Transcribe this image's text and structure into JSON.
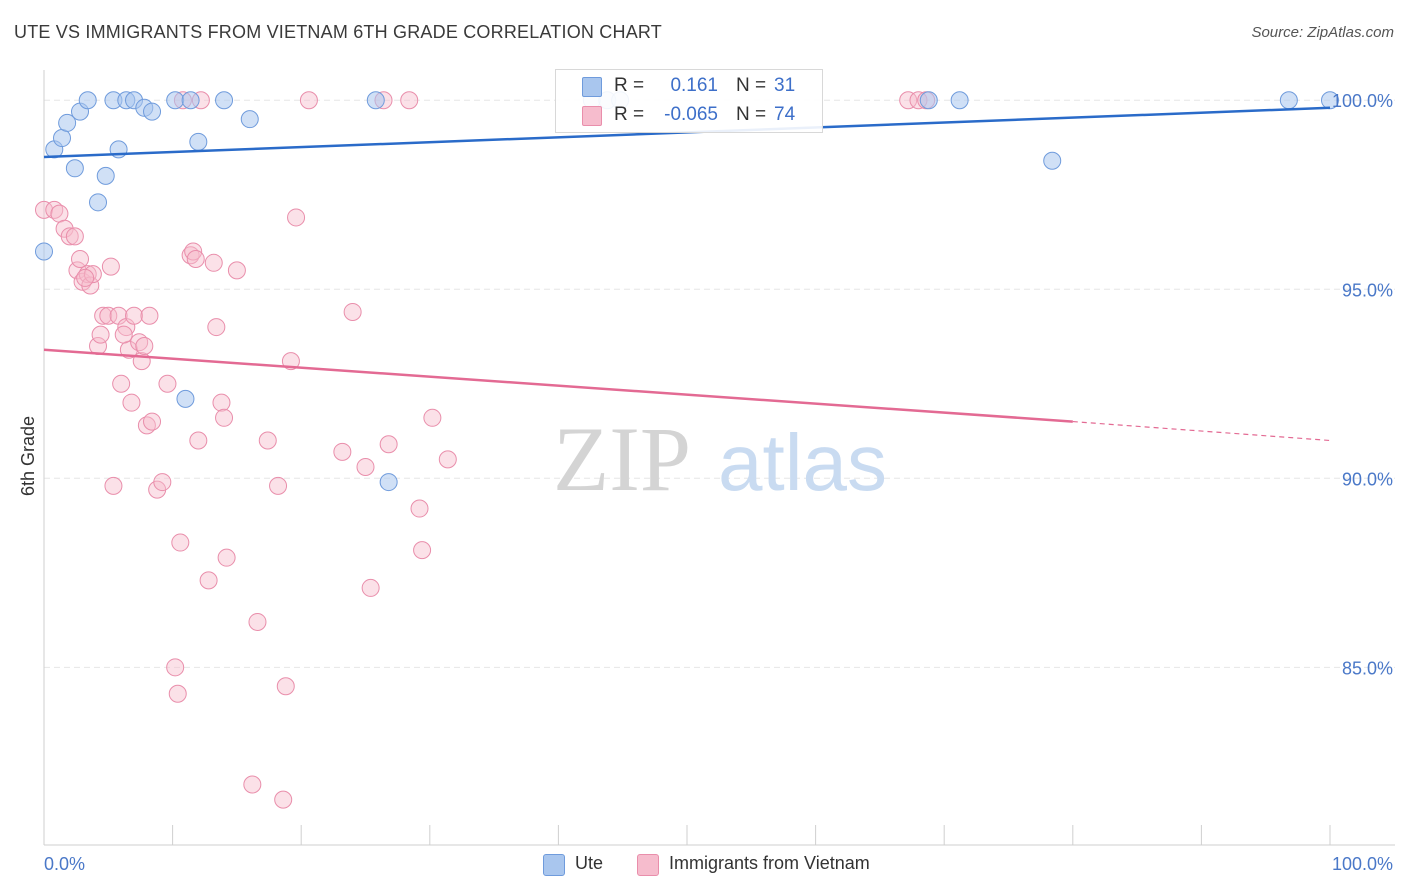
{
  "title": "UTE VS IMMIGRANTS FROM VIETNAM 6TH GRADE CORRELATION CHART",
  "source": "Source: ZipAtlas.com",
  "watermark": {
    "zip": "ZIP",
    "atlas": "atlas"
  },
  "colors": {
    "ute_fill": "#a9c6ee",
    "ute_stroke": "#6f9bdc",
    "ute_line": "#2a6bc9",
    "viet_fill": "#f6bccd",
    "viet_stroke": "#e98eab",
    "viet_line": "#e36a93",
    "tick_label": "#4a78c8",
    "grid": "#e6e6e6"
  },
  "legend": {
    "rows": [
      {
        "r_label": "R =",
        "r_value": "0.161",
        "n_label": "N =",
        "n_value": "31"
      },
      {
        "r_label": "R =",
        "r_value": "-0.065",
        "n_label": "N =",
        "n_value": "74"
      }
    ]
  },
  "bottom_legend": {
    "ute": "Ute",
    "viet": "Immigrants from Vietnam"
  },
  "chart_data": {
    "type": "scatter",
    "title": "UTE VS IMMIGRANTS FROM VIETNAM 6TH GRADE CORRELATION CHART",
    "ylabel": "6th Grade",
    "xlabel": "",
    "xlim": [
      0,
      100
    ],
    "ylim": [
      80.3,
      100.8
    ],
    "x_tick_labels": [
      {
        "value": 0,
        "label": "0.0%"
      },
      {
        "value": 100,
        "label": "100.0%"
      }
    ],
    "y_tick_labels": [
      {
        "value": 100,
        "label": "100.0%"
      },
      {
        "value": 95,
        "label": "95.0%"
      },
      {
        "value": 90,
        "label": "90.0%"
      },
      {
        "value": 85,
        "label": "85.0%"
      }
    ],
    "series": [
      {
        "name": "Ute",
        "r": 0.161,
        "n": 31,
        "trend": {
          "x0": 0,
          "y0": 98.5,
          "x1": 100,
          "y1": 99.8
        },
        "points": [
          [
            0,
            96.0
          ],
          [
            0.8,
            98.7
          ],
          [
            1.4,
            99.0
          ],
          [
            1.8,
            99.4
          ],
          [
            2.4,
            98.2
          ],
          [
            2.8,
            99.7
          ],
          [
            3.4,
            100.0
          ],
          [
            4.2,
            97.3
          ],
          [
            4.8,
            98.0
          ],
          [
            5.4,
            100.0
          ],
          [
            5.8,
            98.7
          ],
          [
            6.4,
            100.0
          ],
          [
            7.0,
            100.0
          ],
          [
            7.8,
            99.8
          ],
          [
            8.4,
            99.7
          ],
          [
            10.2,
            100.0
          ],
          [
            11.0,
            92.1
          ],
          [
            11.4,
            100.0
          ],
          [
            12.0,
            98.9
          ],
          [
            14.0,
            100.0
          ],
          [
            16.0,
            99.5
          ],
          [
            25.8,
            100.0
          ],
          [
            26.8,
            89.9
          ],
          [
            42.6,
            100.0
          ],
          [
            43.8,
            100.0
          ],
          [
            44.8,
            100.0
          ],
          [
            68.8,
            100.0
          ],
          [
            71.2,
            100.0
          ],
          [
            78.4,
            98.4
          ],
          [
            96.8,
            100.0
          ],
          [
            100.0,
            100.0
          ]
        ]
      },
      {
        "name": "Immigrants from Vietnam",
        "r": -0.065,
        "n": 74,
        "trend": {
          "x0": 0,
          "y0": 93.4,
          "x1": 80,
          "y1": 91.5,
          "dash_to_x": 100,
          "dash_to_y": 91.0
        },
        "points": [
          [
            0,
            97.1
          ],
          [
            0.8,
            97.1
          ],
          [
            1.2,
            97.0
          ],
          [
            1.6,
            96.6
          ],
          [
            2.0,
            96.4
          ],
          [
            2.4,
            96.4
          ],
          [
            2.6,
            95.5
          ],
          [
            2.8,
            95.8
          ],
          [
            3.0,
            95.2
          ],
          [
            3.4,
            95.4
          ],
          [
            3.6,
            95.1
          ],
          [
            3.8,
            95.4
          ],
          [
            4.2,
            93.5
          ],
          [
            4.4,
            93.8
          ],
          [
            4.6,
            94.3
          ],
          [
            5.0,
            94.3
          ],
          [
            5.2,
            95.6
          ],
          [
            5.4,
            89.8
          ],
          [
            5.8,
            94.3
          ],
          [
            6.0,
            92.5
          ],
          [
            6.4,
            94.0
          ],
          [
            6.6,
            93.4
          ],
          [
            6.8,
            92.0
          ],
          [
            7.0,
            94.3
          ],
          [
            7.4,
            93.6
          ],
          [
            7.6,
            93.1
          ],
          [
            7.8,
            93.5
          ],
          [
            8.0,
            91.4
          ],
          [
            8.2,
            94.3
          ],
          [
            8.4,
            91.5
          ],
          [
            8.8,
            89.7
          ],
          [
            9.2,
            89.9
          ],
          [
            9.6,
            92.5
          ],
          [
            10.2,
            85.0
          ],
          [
            10.4,
            84.3
          ],
          [
            10.6,
            88.3
          ],
          [
            10.8,
            100.0
          ],
          [
            11.4,
            95.9
          ],
          [
            11.6,
            96.0
          ],
          [
            11.8,
            95.8
          ],
          [
            12.0,
            91.0
          ],
          [
            12.2,
            100.0
          ],
          [
            12.8,
            87.3
          ],
          [
            13.2,
            95.7
          ],
          [
            13.4,
            94.0
          ],
          [
            13.8,
            92.0
          ],
          [
            14.0,
            91.6
          ],
          [
            14.2,
            87.9
          ],
          [
            15.0,
            95.5
          ],
          [
            16.2,
            81.9
          ],
          [
            16.6,
            86.2
          ],
          [
            17.4,
            91.0
          ],
          [
            18.2,
            89.8
          ],
          [
            18.6,
            81.5
          ],
          [
            18.8,
            84.5
          ],
          [
            19.2,
            93.1
          ],
          [
            19.6,
            96.9
          ],
          [
            20.6,
            100.0
          ],
          [
            23.2,
            90.7
          ],
          [
            24.0,
            94.4
          ],
          [
            25.0,
            90.3
          ],
          [
            25.4,
            87.1
          ],
          [
            26.4,
            100.0
          ],
          [
            26.8,
            90.9
          ],
          [
            28.4,
            100.0
          ],
          [
            29.2,
            89.2
          ],
          [
            29.4,
            88.1
          ],
          [
            30.2,
            91.6
          ],
          [
            31.4,
            90.5
          ],
          [
            67.2,
            100.0
          ],
          [
            68.0,
            100.0
          ],
          [
            68.6,
            100.0
          ],
          [
            3.2,
            95.3
          ],
          [
            6.2,
            93.8
          ]
        ]
      }
    ],
    "legend_position": "top-center",
    "grid": true
  }
}
